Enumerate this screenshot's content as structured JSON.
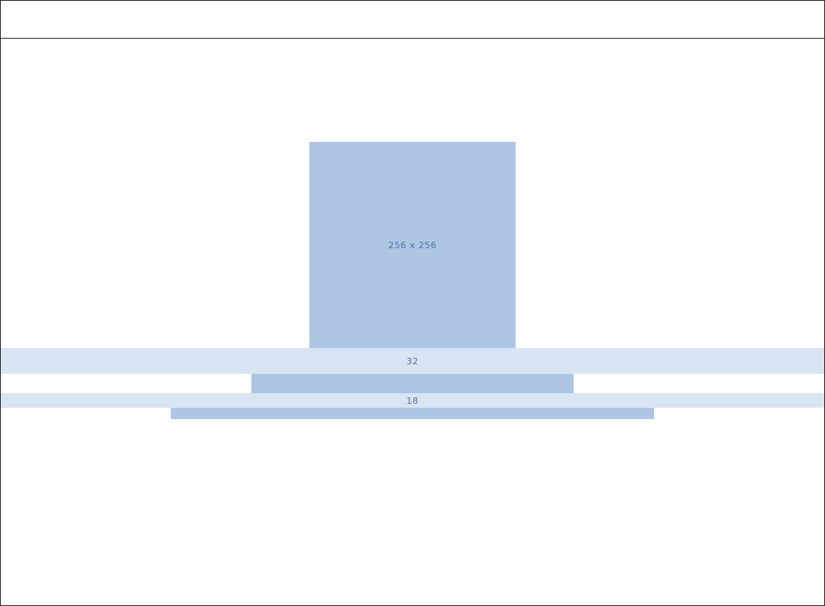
{
  "placeholder": {
    "image_label": "256 x 256"
  },
  "spacing_guides": {
    "first_label": "32",
    "second_label": "18"
  },
  "colors": {
    "border": "#2b2b2b",
    "placeholder_fill": "#adc6e4",
    "guide_fill": "#d9e5f2",
    "label_text": "#4a72b0",
    "background": "#ffffff"
  }
}
